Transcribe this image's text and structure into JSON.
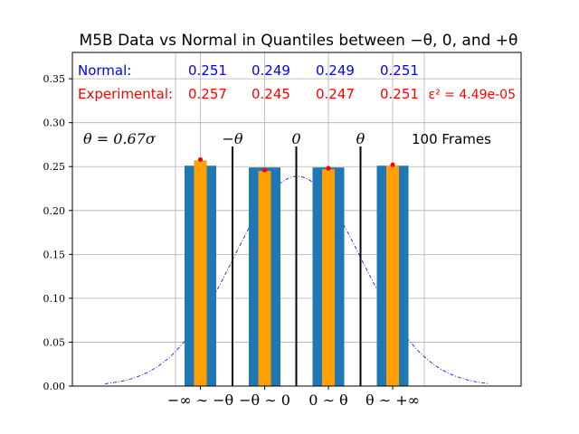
{
  "chart_data": {
    "type": "bar",
    "title": "M5B Data vs Normal in Quantiles between −θ, 0, and +θ",
    "categories": [
      "−∞ ∼ −θ",
      "−θ ∼ 0",
      "0 ∼ θ",
      "θ ∼ +∞"
    ],
    "series": [
      {
        "name": "Normal",
        "values": [
          0.251,
          0.249,
          0.249,
          0.251
        ],
        "color": "#1f77b4"
      },
      {
        "name": "Experimental",
        "values": [
          0.257,
          0.245,
          0.247,
          0.251
        ],
        "color": "#ff9f00"
      }
    ],
    "ylim": [
      0,
      0.38
    ],
    "yticks": [
      "0.00",
      "0.05",
      "0.10",
      "0.15",
      "0.20",
      "0.25",
      "0.30",
      "0.35"
    ],
    "grid": true,
    "normal_curve_color": "#0000ff",
    "threshold_labels": [
      "−θ",
      "0",
      "θ"
    ],
    "annotations": {
      "normal_label": "Normal:",
      "normal_values": [
        "0.251",
        "0.249",
        "0.249",
        "0.251"
      ],
      "experimental_label": "Experimental:",
      "experimental_values": [
        "0.257",
        "0.245",
        "0.247",
        "0.251"
      ],
      "epsilon": "ε² = 4.49e-05",
      "theta": "θ = 0.67σ",
      "frames": "100 Frames",
      "normal_color": "#0000ff",
      "experimental_color": "#ff0000"
    }
  }
}
